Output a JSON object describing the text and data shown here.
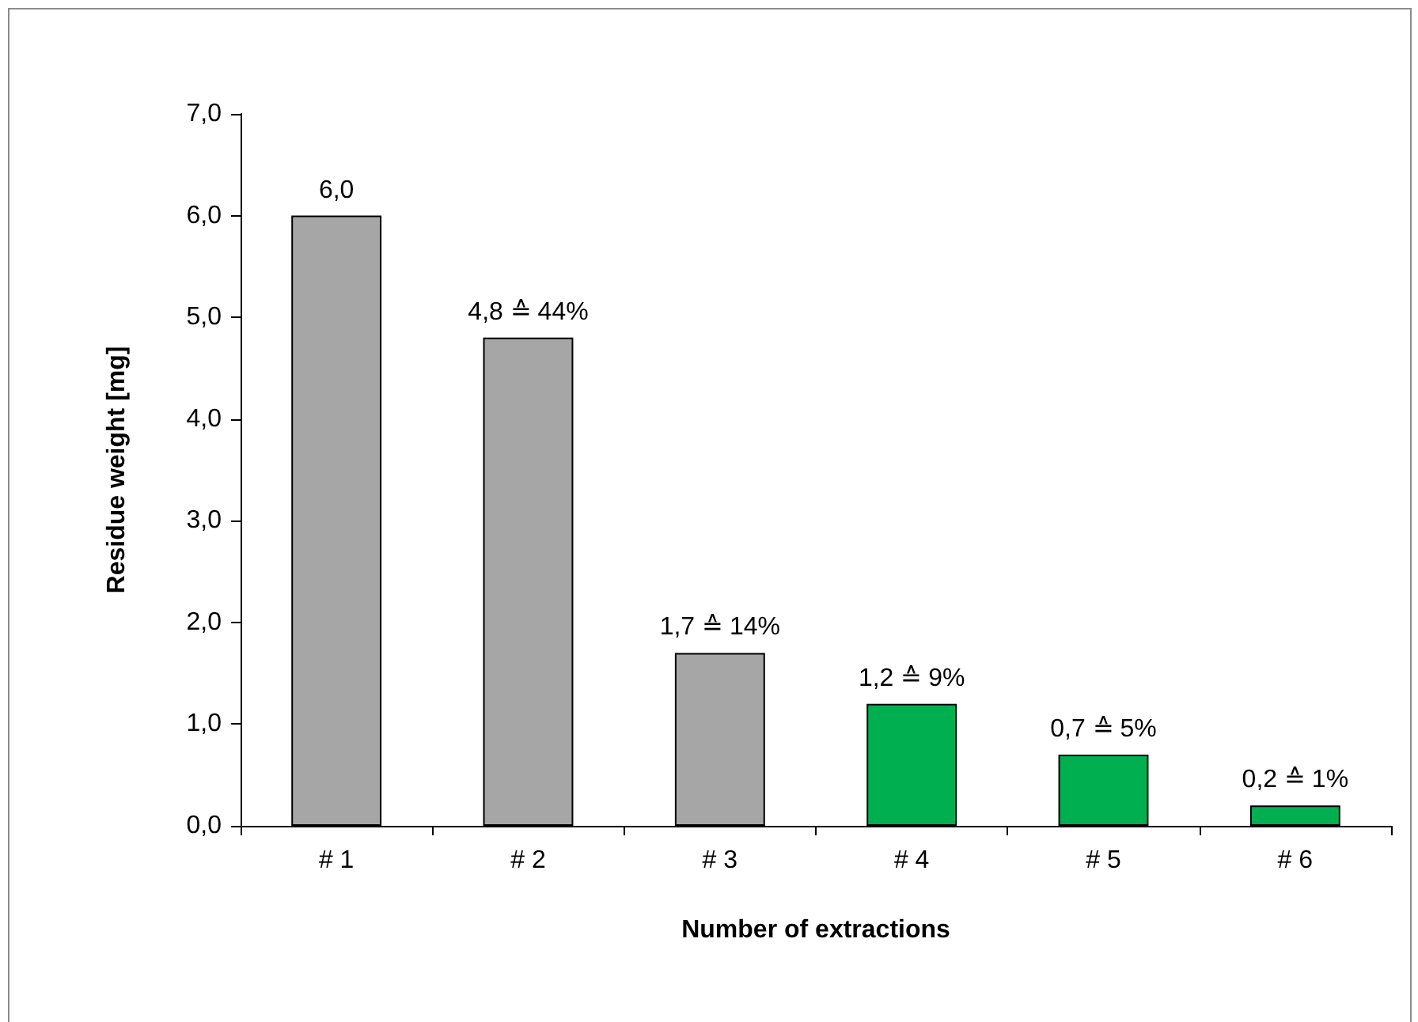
{
  "chart_data": {
    "type": "bar",
    "xlabel": "Number of extractions",
    "ylabel": "Residue weight [mg]",
    "categories": [
      "# 1",
      "# 2",
      "# 3",
      "# 4",
      "# 5",
      "# 6"
    ],
    "values": [
      6.0,
      4.8,
      1.7,
      1.2,
      0.7,
      0.2
    ],
    "colors": [
      "#a6a6a6",
      "#a6a6a6",
      "#a6a6a6",
      "#00b050",
      "#00b050",
      "#00b050"
    ],
    "value_labels": [
      "6,0",
      "4,8 ≙ 44%",
      "1,7 ≙ 14%",
      "1,2 ≙ 9%",
      "0,7 ≙ 5%",
      "0,2 ≙ 1%"
    ],
    "ylim": [
      0,
      7
    ],
    "yticks": [
      {
        "value": 0,
        "label": "0,0"
      },
      {
        "value": 1,
        "label": "1,0"
      },
      {
        "value": 2,
        "label": "2,0"
      },
      {
        "value": 3,
        "label": "3,0"
      },
      {
        "value": 4,
        "label": "4,0"
      },
      {
        "value": 5,
        "label": "5,0"
      },
      {
        "value": 6,
        "label": "6,0"
      },
      {
        "value": 7,
        "label": "7,0"
      }
    ],
    "grid": false
  }
}
